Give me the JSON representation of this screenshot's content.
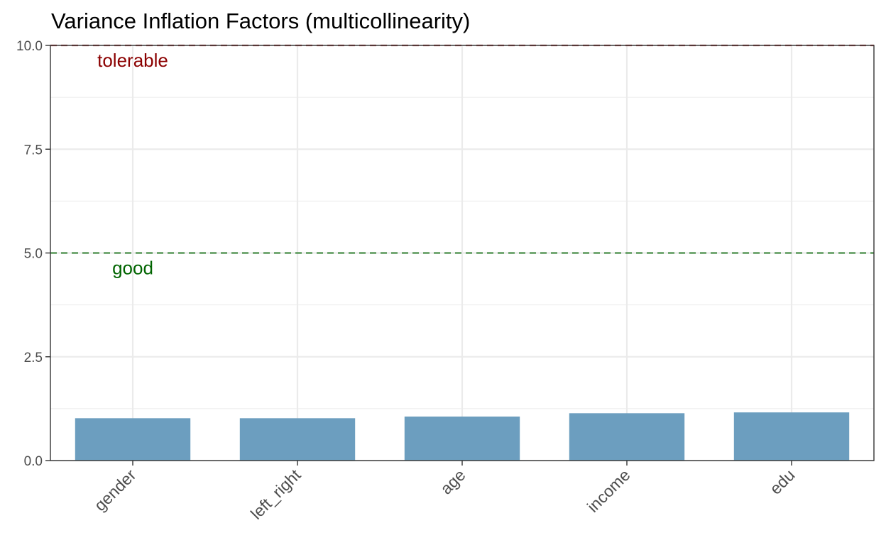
{
  "chart_data": {
    "type": "bar",
    "title": "Variance Inflation Factors (multicollinearity)",
    "xlabel": "",
    "ylabel": "",
    "categories": [
      "gender",
      "left_right",
      "age",
      "income",
      "edu"
    ],
    "values": [
      1.02,
      1.02,
      1.06,
      1.14,
      1.16
    ],
    "ylim": [
      0,
      10
    ],
    "yticks": [
      0,
      2.5,
      5,
      7.5,
      10
    ],
    "ytick_labels": [
      "0.0",
      "2.5",
      "5.0",
      "7.5",
      "10.0"
    ],
    "grid": true,
    "reference_lines": [
      {
        "value": 5,
        "label": "good",
        "color": "#006400",
        "style": "dashed"
      },
      {
        "value": 10,
        "label": "tolerable",
        "color": "#8b0000",
        "style": "dashed"
      }
    ],
    "colors": {
      "bar": "#6c9ebf",
      "grid": "#ebebeb",
      "axis": "#333333"
    }
  }
}
